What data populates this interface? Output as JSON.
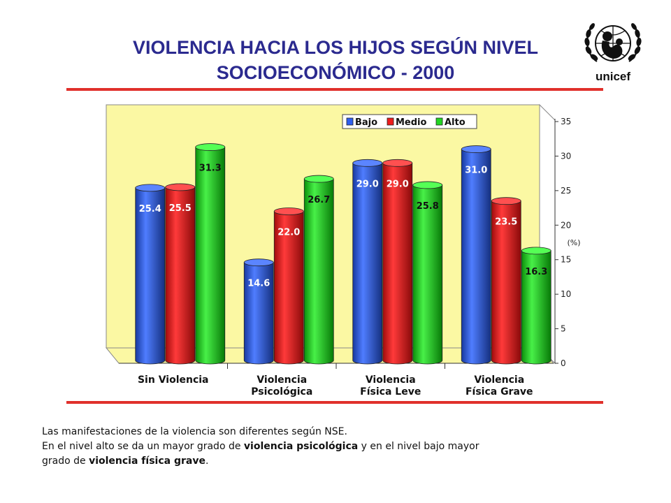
{
  "title": {
    "line1": "VIOLENCIA HACIA LOS HIJOS SEGÚN NIVEL",
    "line2": "SOCIOECONÓMICO - 2000"
  },
  "logo": {
    "text": "unicef"
  },
  "chart_data": {
    "type": "bar",
    "categories": [
      [
        "Sin Violencia"
      ],
      [
        "Violencia",
        "Psicológica"
      ],
      [
        "Violencia",
        "Física Leve"
      ],
      [
        "Violencia",
        "Física Grave"
      ]
    ],
    "series": [
      {
        "name": "Bajo",
        "color": "#2f5ff0",
        "values": [
          25.4,
          14.6,
          29.0,
          31.0
        ]
      },
      {
        "name": "Medio",
        "color": "#ee1c1c",
        "values": [
          25.5,
          22.0,
          29.0,
          23.5
        ]
      },
      {
        "name": "Alto",
        "color": "#22d622",
        "values": [
          31.3,
          26.7,
          25.8,
          16.3
        ]
      }
    ],
    "data_labels": [
      [
        "25.4",
        "14.6",
        "29.0",
        "31.0"
      ],
      [
        "25.5",
        "22.0",
        "29.0",
        "23.5"
      ],
      [
        "31.3",
        "26.7",
        "25.8",
        "16.3"
      ]
    ],
    "ylabel": "(%)",
    "ylim": [
      0,
      35
    ],
    "yticks": [
      "0",
      "5",
      "10",
      "15",
      "20",
      "25",
      "30",
      "35"
    ],
    "legend_position": "top-right",
    "wall_color": "#fbf8a3"
  },
  "footer": {
    "line1": "Las manifestaciones de la violencia son diferentes según NSE.",
    "line2_a": "En el nivel alto se da un mayor grado de ",
    "line2_b": "violencia psicológica",
    "line2_c": " y en el nivel bajo mayor",
    "line3_a": "grado de ",
    "line3_b": "violencia física grave",
    "line3_c": "."
  }
}
